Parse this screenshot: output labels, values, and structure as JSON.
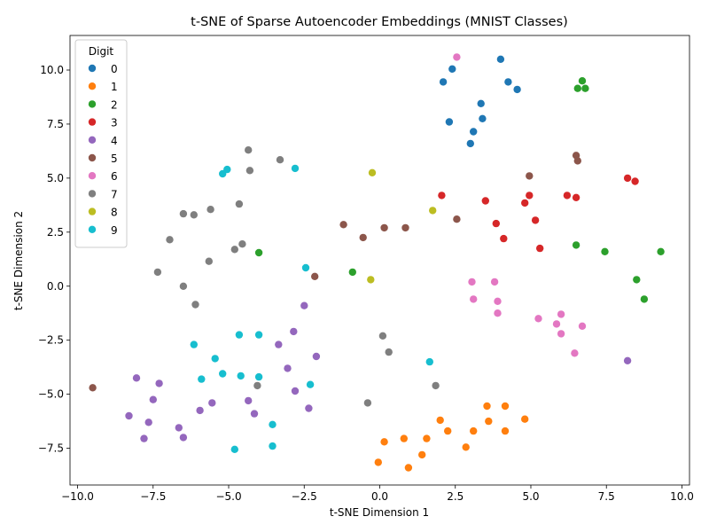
{
  "chart_data": {
    "type": "scatter",
    "title": "t-SNE of Sparse Autoencoder Embeddings (MNIST Classes)",
    "xlabel": "t-SNE Dimension 1",
    "ylabel": "t-SNE Dimension 2",
    "xlim": [
      -10.25,
      10.25
    ],
    "ylim": [
      -9.2,
      11.6
    ],
    "xticks": [
      -10.0,
      -7.5,
      -5.0,
      -2.5,
      0.0,
      2.5,
      5.0,
      7.5,
      10.0
    ],
    "xtick_labels": [
      "−10.0",
      "−7.5",
      "−5.0",
      "−2.5",
      "0.0",
      "2.5",
      "5.0",
      "7.5",
      "10.0"
    ],
    "yticks": [
      -7.5,
      -5.0,
      -2.5,
      0.0,
      2.5,
      5.0,
      7.5,
      10.0
    ],
    "ytick_labels": [
      "−7.5",
      "−5.0",
      "−2.5",
      "0.0",
      "2.5",
      "5.0",
      "7.5",
      "10.0"
    ],
    "grid": false,
    "legend": {
      "title": "Digit",
      "placement": "top-left"
    },
    "series": [
      {
        "name": "0",
        "color": "#1f77b4",
        "points": [
          [
            2.1,
            9.45
          ],
          [
            2.4,
            10.05
          ],
          [
            4.0,
            10.5
          ],
          [
            4.25,
            9.45
          ],
          [
            4.55,
            9.1
          ],
          [
            3.35,
            8.45
          ],
          [
            2.3,
            7.6
          ],
          [
            3.4,
            7.75
          ],
          [
            3.1,
            7.15
          ],
          [
            3.0,
            6.6
          ]
        ]
      },
      {
        "name": "1",
        "color": "#ff7f0e",
        "points": [
          [
            3.55,
            -5.55
          ],
          [
            4.15,
            -5.55
          ],
          [
            4.8,
            -6.15
          ],
          [
            2.0,
            -6.2
          ],
          [
            3.6,
            -6.25
          ],
          [
            2.25,
            -6.7
          ],
          [
            3.1,
            -6.7
          ],
          [
            4.15,
            -6.7
          ],
          [
            0.15,
            -7.2
          ],
          [
            0.8,
            -7.05
          ],
          [
            1.55,
            -7.05
          ],
          [
            2.85,
            -7.45
          ],
          [
            1.4,
            -7.8
          ],
          [
            -0.05,
            -8.15
          ],
          [
            0.95,
            -8.4
          ]
        ]
      },
      {
        "name": "2",
        "color": "#2ca02c",
        "points": [
          [
            6.7,
            9.5
          ],
          [
            6.55,
            9.15
          ],
          [
            6.8,
            9.15
          ],
          [
            6.5,
            1.9
          ],
          [
            7.45,
            1.6
          ],
          [
            9.3,
            1.6
          ],
          [
            -4.0,
            1.55
          ],
          [
            -0.9,
            0.65
          ],
          [
            8.5,
            0.3
          ],
          [
            8.75,
            -0.6
          ]
        ]
      },
      {
        "name": "3",
        "color": "#d62728",
        "points": [
          [
            2.05,
            4.2
          ],
          [
            3.5,
            3.95
          ],
          [
            4.95,
            4.2
          ],
          [
            6.2,
            4.2
          ],
          [
            6.5,
            4.1
          ],
          [
            8.2,
            5.0
          ],
          [
            8.45,
            4.85
          ],
          [
            4.8,
            3.85
          ],
          [
            5.15,
            3.05
          ],
          [
            3.85,
            2.9
          ],
          [
            4.1,
            2.2
          ],
          [
            5.3,
            1.75
          ]
        ]
      },
      {
        "name": "4",
        "color": "#9467bd",
        "points": [
          [
            -2.5,
            -0.9
          ],
          [
            -2.85,
            -2.1
          ],
          [
            -3.35,
            -2.7
          ],
          [
            -2.1,
            -3.25
          ],
          [
            -3.05,
            -3.8
          ],
          [
            -8.05,
            -4.25
          ],
          [
            -7.3,
            -4.5
          ],
          [
            -7.5,
            -5.25
          ],
          [
            -2.8,
            -4.85
          ],
          [
            -4.35,
            -5.3
          ],
          [
            -5.55,
            -5.4
          ],
          [
            -2.35,
            -5.65
          ],
          [
            -5.95,
            -5.75
          ],
          [
            -4.15,
            -5.9
          ],
          [
            -8.3,
            -6.0
          ],
          [
            -7.65,
            -6.3
          ],
          [
            -6.65,
            -6.55
          ],
          [
            -7.8,
            -7.05
          ],
          [
            -6.5,
            -7.0
          ],
          [
            8.2,
            -3.45
          ]
        ]
      },
      {
        "name": "5",
        "color": "#8c564b",
        "points": [
          [
            6.5,
            6.05
          ],
          [
            6.55,
            5.8
          ],
          [
            4.95,
            5.1
          ],
          [
            2.55,
            3.1
          ],
          [
            -1.2,
            2.85
          ],
          [
            0.15,
            2.7
          ],
          [
            0.85,
            2.7
          ],
          [
            -0.55,
            2.25
          ],
          [
            -2.15,
            0.45
          ],
          [
            -9.5,
            -4.7
          ]
        ]
      },
      {
        "name": "6",
        "color": "#e377c2",
        "points": [
          [
            2.55,
            10.6
          ],
          [
            3.05,
            0.2
          ],
          [
            3.8,
            0.2
          ],
          [
            3.1,
            -0.6
          ],
          [
            3.9,
            -0.7
          ],
          [
            3.9,
            -1.25
          ],
          [
            6.0,
            -1.3
          ],
          [
            5.25,
            -1.5
          ],
          [
            5.85,
            -1.75
          ],
          [
            6.7,
            -1.85
          ],
          [
            6.0,
            -2.2
          ],
          [
            6.45,
            -3.1
          ]
        ]
      },
      {
        "name": "7",
        "color": "#7f7f7f",
        "points": [
          [
            -4.35,
            6.3
          ],
          [
            -3.3,
            5.85
          ],
          [
            -4.3,
            5.35
          ],
          [
            -4.65,
            3.8
          ],
          [
            -5.6,
            3.55
          ],
          [
            -6.5,
            3.35
          ],
          [
            -6.15,
            3.3
          ],
          [
            -6.95,
            2.15
          ],
          [
            -4.55,
            1.95
          ],
          [
            -4.8,
            1.7
          ],
          [
            -5.65,
            1.15
          ],
          [
            -7.35,
            0.65
          ],
          [
            -6.5,
            0.0
          ],
          [
            -6.1,
            -0.85
          ],
          [
            0.1,
            -2.3
          ],
          [
            0.3,
            -3.05
          ],
          [
            -4.05,
            -4.6
          ],
          [
            1.85,
            -4.6
          ],
          [
            -0.4,
            -5.4
          ]
        ]
      },
      {
        "name": "8",
        "color": "#bcbd22",
        "points": [
          [
            -0.25,
            5.25
          ],
          [
            1.75,
            3.5
          ],
          [
            -0.3,
            0.3
          ]
        ]
      },
      {
        "name": "9",
        "color": "#17becf",
        "points": [
          [
            -5.05,
            5.4
          ],
          [
            -5.2,
            5.2
          ],
          [
            -2.8,
            5.45
          ],
          [
            -2.45,
            0.85
          ],
          [
            -4.65,
            -2.25
          ],
          [
            -4.0,
            -2.25
          ],
          [
            -6.15,
            -2.7
          ],
          [
            -5.45,
            -3.35
          ],
          [
            1.65,
            -3.5
          ],
          [
            -5.2,
            -4.05
          ],
          [
            -4.6,
            -4.15
          ],
          [
            -4.0,
            -4.2
          ],
          [
            -5.9,
            -4.3
          ],
          [
            -2.3,
            -4.55
          ],
          [
            -3.55,
            -6.4
          ],
          [
            -3.55,
            -7.4
          ],
          [
            -4.8,
            -7.55
          ]
        ]
      }
    ]
  }
}
